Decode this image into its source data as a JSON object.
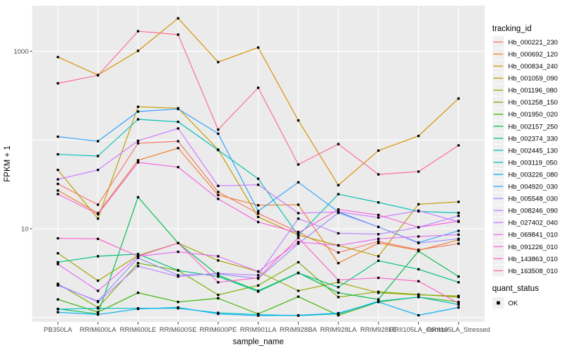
{
  "figure": {
    "background": "#FFFFFF",
    "panel_background": "#EBEBEB",
    "gridline_color": "#FFFFFF",
    "tick_color": "#333333",
    "tick_label_color": "#4D4D4D",
    "legend_key_background": "#F0F0F0",
    "point_color": "#000000"
  },
  "chart_data": {
    "type": "line",
    "title": "",
    "xlabel": "sample_name",
    "ylabel": "FPKM + 1",
    "y_scale": "log10",
    "ylim": [
      0.89,
      3260
    ],
    "grid": "on",
    "legend_position": "right",
    "y_ticks": [
      {
        "value": 10,
        "label": "10"
      },
      {
        "value": 1000,
        "label": "1000"
      }
    ],
    "y_gridlines": [
      1,
      10,
      100,
      1000
    ],
    "categories": [
      "PB350LA",
      "RRIM600LA",
      "RRIM600LE",
      "RRIM600SE",
      "RRIM600PE",
      "RRIM901LA",
      "RRIM928BA",
      "RRIM928LA",
      "RRIM928LE",
      "RRII105LA_Control",
      "RRII105LA_Stressed"
    ],
    "series": [
      {
        "name": "Hb_000221_230",
        "color": "#F8766D",
        "values": [
          32,
          18.7,
          92,
          97,
          26,
          14.9,
          9.2,
          5.4,
          7.2,
          5.8,
          6.8
        ]
      },
      {
        "name": "Hb_000692_120",
        "color": "#EA8331",
        "values": [
          27,
          15,
          59,
          81,
          24,
          18.4,
          18.7,
          4.1,
          6.9,
          5.7,
          7.5
        ]
      },
      {
        "name": "Hb_000834_240",
        "color": "#D89000",
        "values": [
          860,
          540,
          1010,
          2350,
          755,
          1100,
          166,
          31,
          76,
          111,
          293
        ]
      },
      {
        "name": "Hb_001059_090",
        "color": "#C09B00",
        "values": [
          46,
          13,
          237,
          228,
          78,
          13.6,
          8.5,
          6.5,
          4.9,
          18.9,
          20.1
        ]
      },
      {
        "name": "Hb_001196_080",
        "color": "#A3A500",
        "values": [
          5.3,
          2.6,
          5.0,
          6.9,
          4.4,
          3.3,
          2.0,
          2.5,
          1.9,
          1.8,
          1.75
        ]
      },
      {
        "name": "Hb_001258_150",
        "color": "#7CAE00",
        "values": [
          2.4,
          1.3,
          4.1,
          3.4,
          1.8,
          2.3,
          4.2,
          1.7,
          1.95,
          1.82,
          1.7
        ]
      },
      {
        "name": "Hb_001950_020",
        "color": "#39B600",
        "values": [
          1.6,
          1.15,
          1.9,
          1.5,
          1.65,
          1.1,
          1.72,
          1.06,
          1.5,
          1.7,
          1.5
        ]
      },
      {
        "name": "Hb_002157_250",
        "color": "#00BB4E",
        "values": [
          1.25,
          1.1,
          22.7,
          6.9,
          3.0,
          2.0,
          3.2,
          1.9,
          1.6,
          5.6,
          2.9
        ]
      },
      {
        "name": "Hb_002374_330",
        "color": "#00C087",
        "values": [
          4.2,
          4.9,
          5.2,
          3.4,
          2.9,
          1.96,
          3.17,
          2.2,
          4.37,
          3.5,
          2.5
        ]
      },
      {
        "name": "Hb_002445_130",
        "color": "#00C0B4",
        "values": [
          69,
          66,
          171,
          160,
          77,
          36.6,
          8.4,
          24.5,
          19.8,
          15.7,
          15.1
        ]
      },
      {
        "name": "Hb_003119_050",
        "color": "#00BFC4",
        "values": [
          1.24,
          1.27,
          1.27,
          1.27,
          1.13,
          1.08,
          1.05,
          1.1,
          1.53,
          1.7,
          1.4
        ]
      },
      {
        "name": "Hb_003226_080",
        "color": "#00B0F6",
        "values": [
          1.15,
          1.08,
          1.25,
          1.3,
          1.1,
          1.05,
          1.06,
          1.12,
          1.5,
          1.06,
          1.3
        ]
      },
      {
        "name": "Hb_004920_030",
        "color": "#2FA2FF",
        "values": [
          109,
          97,
          209,
          224,
          118,
          15.8,
          33.4,
          15.5,
          10.5,
          7.0,
          9.5
        ]
      },
      {
        "name": "Hb_005548_030",
        "color": "#9590FF",
        "values": [
          2.3,
          1.53,
          4.7,
          3.0,
          3.1,
          2.75,
          6.8,
          15.1,
          10.5,
          6.9,
          7.7
        ]
      },
      {
        "name": "Hb_008246_090",
        "color": "#B983FF",
        "values": [
          2.35,
          1.5,
          3.8,
          2.9,
          3.15,
          3.0,
          13,
          8.9,
          8.7,
          10.4,
          14
        ]
      },
      {
        "name": "Hb_027402_040",
        "color": "#CE77FF",
        "values": [
          36,
          46,
          98,
          135,
          30.4,
          31.3,
          15,
          15.5,
          13.4,
          16,
          12
        ]
      },
      {
        "name": "Hb_069841_010",
        "color": "#E76BF3",
        "values": [
          4.0,
          2.0,
          4.9,
          5.5,
          4.9,
          3.3,
          7.1,
          6.5,
          7.7,
          8.2,
          8.6
        ]
      },
      {
        "name": "Hb_091226_010",
        "color": "#F763E0",
        "values": [
          24.6,
          14.6,
          56,
          49.5,
          21.7,
          11.9,
          9,
          16.5,
          14.3,
          10.4,
          12.2
        ]
      },
      {
        "name": "Hb_143863_010",
        "color": "#FF61C7",
        "values": [
          7.8,
          7.7,
          4.9,
          6.9,
          2.5,
          2.8,
          7.9,
          2.65,
          2.8,
          2.57,
          1.45
        ]
      },
      {
        "name": "Hb_163508_010",
        "color": "#FF6B94",
        "values": [
          435,
          535,
          1680,
          1540,
          131,
          388,
          53,
          90,
          41,
          44,
          87
        ]
      }
    ],
    "legend": {
      "color_title": "tracking_id",
      "shape_title": "quant_status",
      "shape_items": [
        {
          "label": "OK",
          "marker": "black-square",
          "color": "#000000"
        }
      ]
    }
  }
}
